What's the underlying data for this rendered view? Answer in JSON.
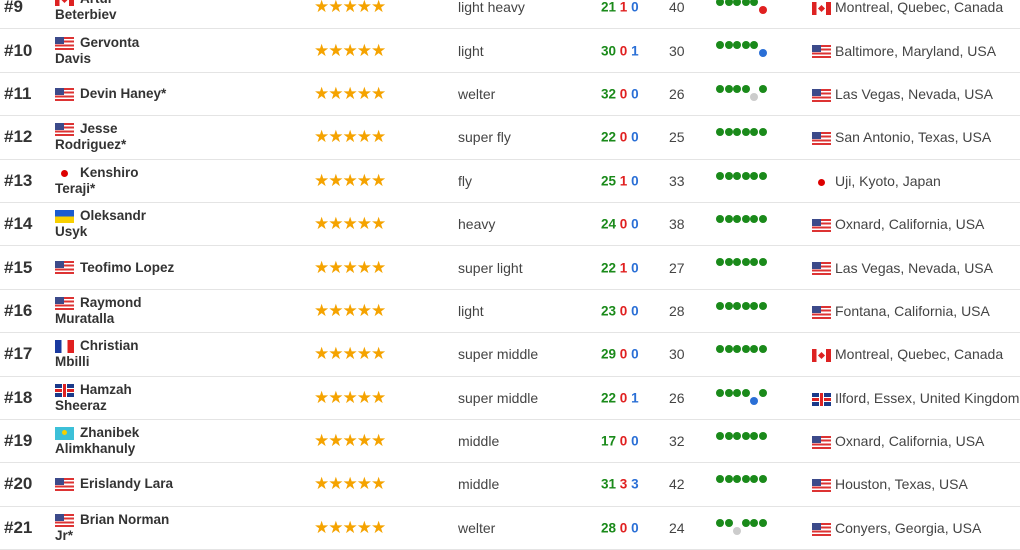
{
  "colors": {
    "win": "#1a8a1a",
    "loss": "#e02020",
    "draw": "#2a6fd6",
    "nc": "#cccccc",
    "star": "#f5a300"
  },
  "rows": [
    {
      "rank": "#9",
      "flag": "ca",
      "name": "Artur Beterbiev",
      "stars": 5,
      "division": "light heavy",
      "w": "21",
      "l": "1",
      "d": "0",
      "age": "40",
      "form": [
        "W",
        "W",
        "W",
        "W",
        "W",
        "L"
      ],
      "loc_flag": "ca",
      "location": "Montreal, Quebec, Canada"
    },
    {
      "rank": "#10",
      "flag": "us",
      "name": "Gervonta Davis",
      "stars": 5,
      "division": "light",
      "w": "30",
      "l": "0",
      "d": "1",
      "age": "30",
      "form": [
        "W",
        "W",
        "W",
        "W",
        "W",
        "D"
      ],
      "loc_flag": "us",
      "location": "Baltimore, Maryland, USA"
    },
    {
      "rank": "#11",
      "flag": "us",
      "name": "Devin Haney*",
      "stars": 5,
      "division": "welter",
      "w": "32",
      "l": "0",
      "d": "0",
      "age": "26",
      "form": [
        "W",
        "W",
        "W",
        "W",
        "NC",
        "W"
      ],
      "loc_flag": "us",
      "location": "Las Vegas, Nevada, USA"
    },
    {
      "rank": "#12",
      "flag": "us",
      "name": "Jesse Rodriguez*",
      "stars": 5,
      "division": "super fly",
      "w": "22",
      "l": "0",
      "d": "0",
      "age": "25",
      "form": [
        "W",
        "W",
        "W",
        "W",
        "W",
        "W"
      ],
      "loc_flag": "us",
      "location": "San Antonio, Texas, USA"
    },
    {
      "rank": "#13",
      "flag": "jp",
      "name": "Kenshiro Teraji*",
      "stars": 5,
      "division": "fly",
      "w": "25",
      "l": "1",
      "d": "0",
      "age": "33",
      "form": [
        "W",
        "W",
        "W",
        "W",
        "W",
        "W"
      ],
      "loc_flag": "jp",
      "location": "Uji, Kyoto, Japan"
    },
    {
      "rank": "#14",
      "flag": "ua",
      "name": "Oleksandr Usyk",
      "stars": 5,
      "division": "heavy",
      "w": "24",
      "l": "0",
      "d": "0",
      "age": "38",
      "form": [
        "W",
        "W",
        "W",
        "W",
        "W",
        "W"
      ],
      "loc_flag": "us",
      "location": "Oxnard, California, USA"
    },
    {
      "rank": "#15",
      "flag": "us",
      "name": "Teofimo Lopez",
      "stars": 5,
      "division": "super light",
      "w": "22",
      "l": "1",
      "d": "0",
      "age": "27",
      "form": [
        "W",
        "W",
        "W",
        "W",
        "W",
        "W"
      ],
      "loc_flag": "us",
      "location": "Las Vegas, Nevada, USA"
    },
    {
      "rank": "#16",
      "flag": "us",
      "name": "Raymond Muratalla",
      "stars": 5,
      "division": "light",
      "w": "23",
      "l": "0",
      "d": "0",
      "age": "28",
      "form": [
        "W",
        "W",
        "W",
        "W",
        "W",
        "W"
      ],
      "loc_flag": "us",
      "location": "Fontana, California, USA"
    },
    {
      "rank": "#17",
      "flag": "fr",
      "name": "Christian Mbilli",
      "stars": 5,
      "division": "super middle",
      "w": "29",
      "l": "0",
      "d": "0",
      "age": "30",
      "form": [
        "W",
        "W",
        "W",
        "W",
        "W",
        "W"
      ],
      "loc_flag": "ca",
      "location": "Montreal, Quebec, Canada"
    },
    {
      "rank": "#18",
      "flag": "gb",
      "name": "Hamzah Sheeraz",
      "stars": 5,
      "division": "super middle",
      "w": "22",
      "l": "0",
      "d": "1",
      "age": "26",
      "form": [
        "W",
        "W",
        "W",
        "W",
        "D",
        "W"
      ],
      "loc_flag": "gb",
      "location": "Ilford, Essex, United Kingdom"
    },
    {
      "rank": "#19",
      "flag": "kz",
      "name": "Zhanibek Alimkhanuly",
      "stars": 5,
      "division": "middle",
      "w": "17",
      "l": "0",
      "d": "0",
      "age": "32",
      "form": [
        "W",
        "W",
        "W",
        "W",
        "W",
        "W"
      ],
      "loc_flag": "us",
      "location": "Oxnard, California, USA"
    },
    {
      "rank": "#20",
      "flag": "us",
      "name": "Erislandy Lara",
      "stars": 5,
      "division": "middle",
      "w": "31",
      "l": "3",
      "d": "3",
      "age": "42",
      "form": [
        "W",
        "W",
        "W",
        "W",
        "W",
        "W"
      ],
      "loc_flag": "us",
      "location": "Houston, Texas, USA"
    },
    {
      "rank": "#21",
      "flag": "us",
      "name": "Brian Norman Jr*",
      "stars": 5,
      "division": "welter",
      "w": "28",
      "l": "0",
      "d": "0",
      "age": "24",
      "form": [
        "W",
        "W",
        "NC",
        "W",
        "W",
        "W"
      ],
      "loc_flag": "us",
      "location": "Conyers, Georgia, USA"
    }
  ]
}
